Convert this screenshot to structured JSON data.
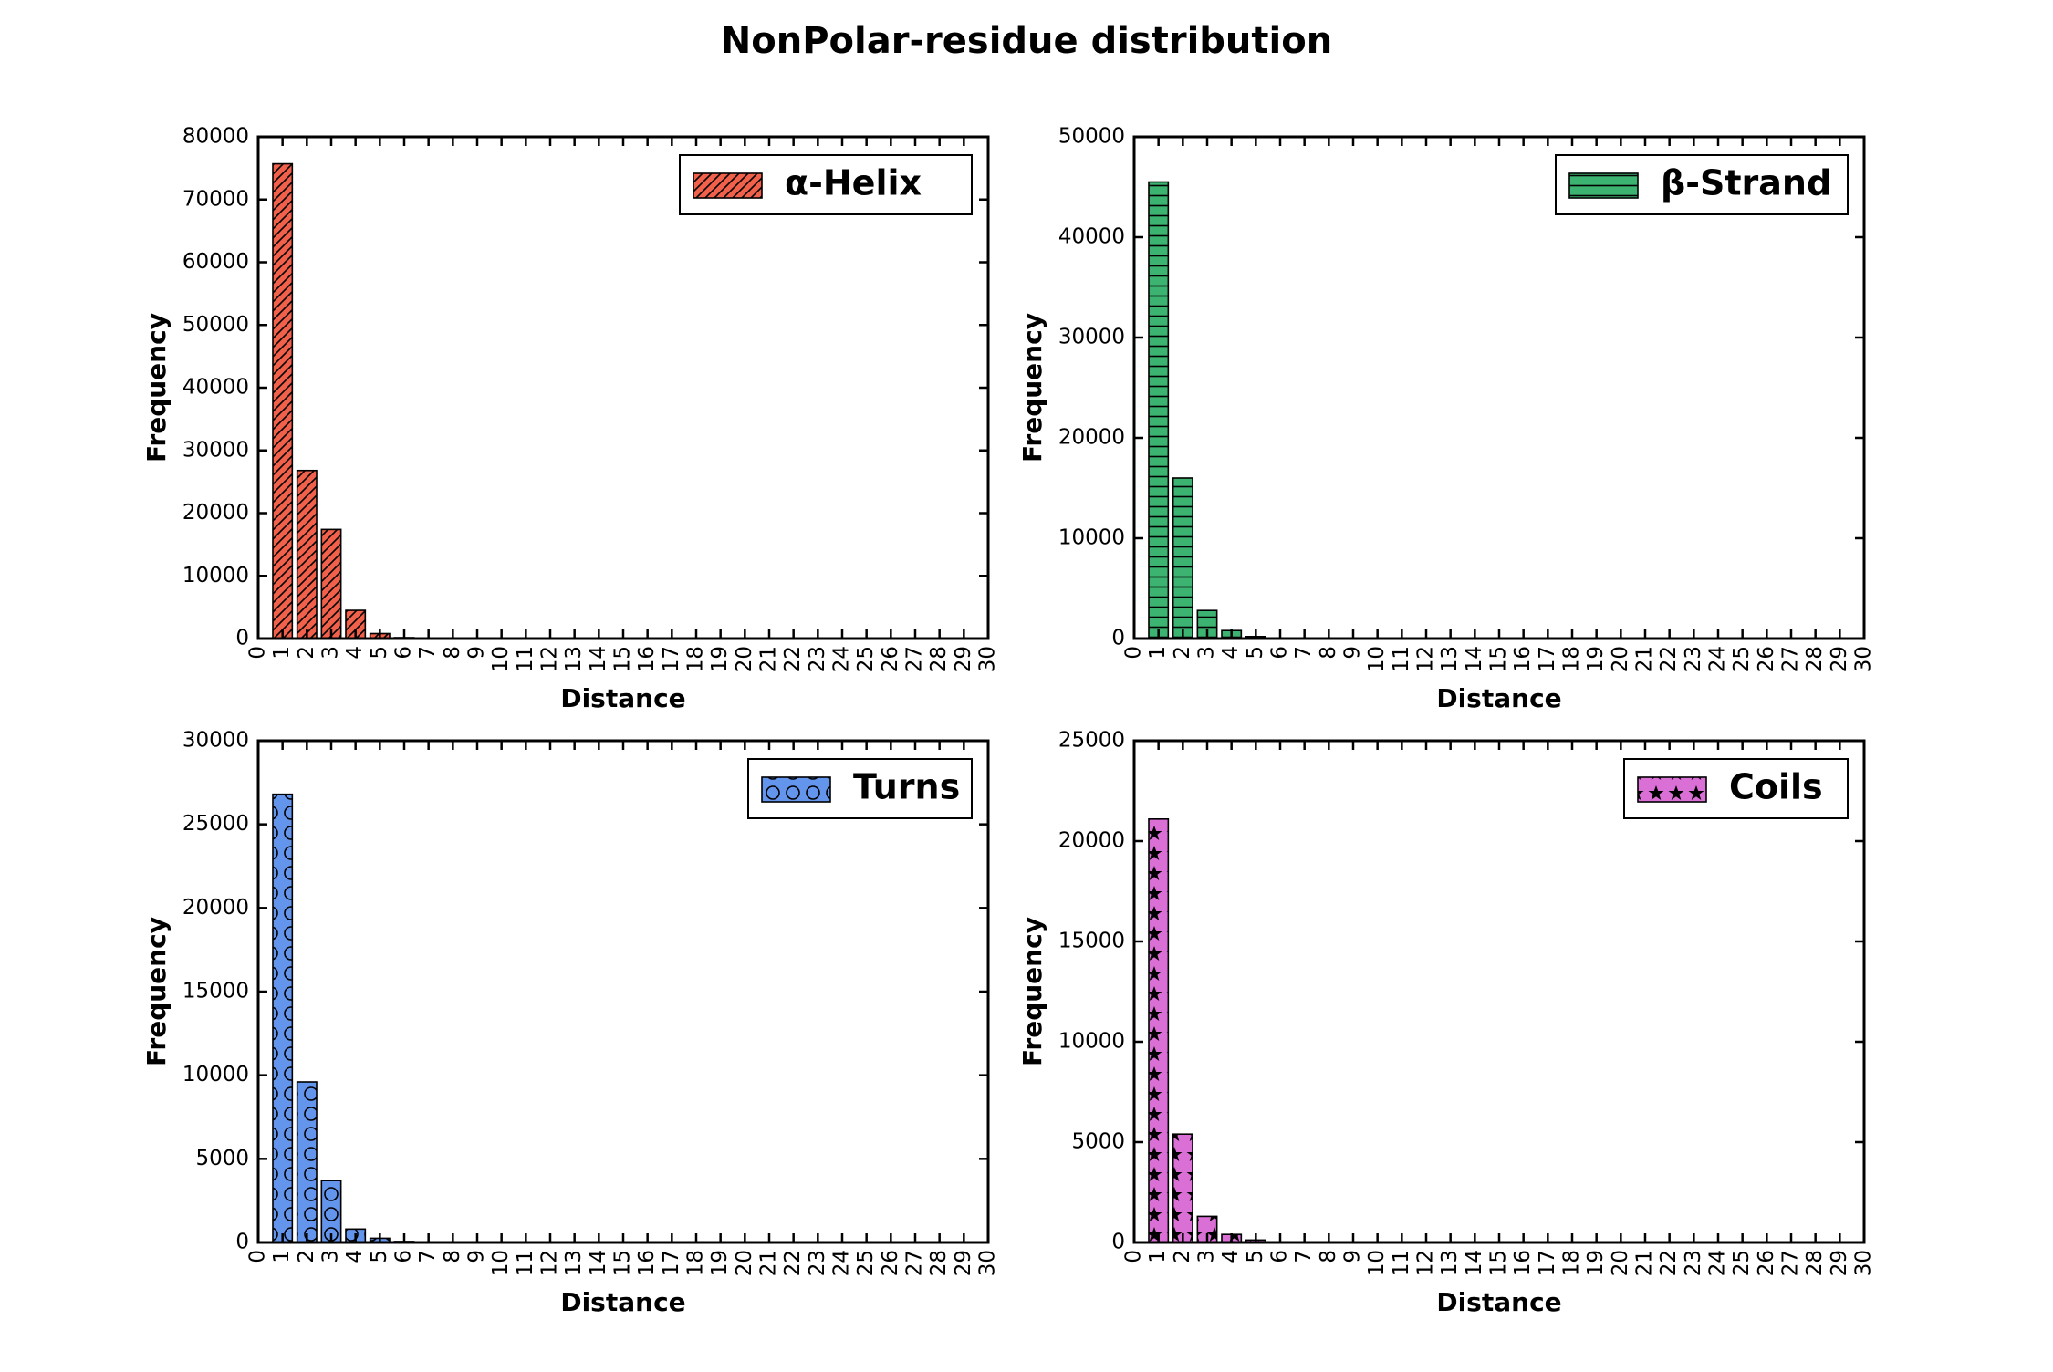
{
  "title": "NonPolar-residue distribution",
  "chart_data": [
    {
      "type": "bar",
      "legend": "α-Helix",
      "legend_placement": "top-right",
      "color": "#f0604a",
      "hatch": "diagonal",
      "xlabel": "Distance",
      "ylabel": "Frequency",
      "xlim": [
        0,
        30
      ],
      "ylim": [
        0,
        80000
      ],
      "yticks": [
        0,
        10000,
        20000,
        30000,
        40000,
        50000,
        60000,
        70000,
        80000
      ],
      "xticks": [
        0,
        1,
        2,
        3,
        4,
        5,
        6,
        7,
        8,
        9,
        10,
        11,
        12,
        13,
        14,
        15,
        16,
        17,
        18,
        19,
        20,
        21,
        22,
        23,
        24,
        25,
        26,
        27,
        28,
        29,
        30
      ],
      "x": [
        1,
        2,
        3,
        4,
        5,
        6,
        7
      ],
      "values": [
        75700,
        26800,
        17400,
        4500,
        800,
        150,
        30
      ]
    },
    {
      "type": "bar",
      "legend": "β-Strand",
      "legend_placement": "top-right",
      "color": "#3cb371",
      "hatch": "horizontal",
      "xlabel": "Distance",
      "ylabel": "Frequency",
      "xlim": [
        0,
        30
      ],
      "ylim": [
        0,
        50000
      ],
      "yticks": [
        0,
        10000,
        20000,
        30000,
        40000,
        50000
      ],
      "xticks": [
        0,
        1,
        2,
        3,
        4,
        5,
        6,
        7,
        8,
        9,
        10,
        11,
        12,
        13,
        14,
        15,
        16,
        17,
        18,
        19,
        20,
        21,
        22,
        23,
        24,
        25,
        26,
        27,
        28,
        29,
        30
      ],
      "x": [
        1,
        2,
        3,
        4,
        5,
        6,
        7
      ],
      "values": [
        45500,
        16000,
        2800,
        800,
        200,
        50,
        10
      ]
    },
    {
      "type": "bar",
      "legend": "Turns",
      "legend_placement": "top-right",
      "color": "#6495ed",
      "hatch": "circles",
      "xlabel": "Distance",
      "ylabel": "Frequency",
      "xlim": [
        0,
        30
      ],
      "ylim": [
        0,
        30000
      ],
      "yticks": [
        0,
        5000,
        10000,
        15000,
        20000,
        25000,
        30000
      ],
      "xticks": [
        0,
        1,
        2,
        3,
        4,
        5,
        6,
        7,
        8,
        9,
        10,
        11,
        12,
        13,
        14,
        15,
        16,
        17,
        18,
        19,
        20,
        21,
        22,
        23,
        24,
        25,
        26,
        27,
        28,
        29,
        30
      ],
      "x": [
        1,
        2,
        3,
        4,
        5,
        6,
        7
      ],
      "values": [
        26800,
        9600,
        3700,
        800,
        250,
        60,
        10
      ]
    },
    {
      "type": "bar",
      "legend": "Coils",
      "legend_placement": "top-right",
      "color": "#da70d6",
      "hatch": "stars",
      "xlabel": "Distance",
      "ylabel": "Frequency",
      "xlim": [
        0,
        30
      ],
      "ylim": [
        0,
        25000
      ],
      "yticks": [
        0,
        5000,
        10000,
        15000,
        20000,
        25000
      ],
      "xticks": [
        0,
        1,
        2,
        3,
        4,
        5,
        6,
        7,
        8,
        9,
        10,
        11,
        12,
        13,
        14,
        15,
        16,
        17,
        18,
        19,
        20,
        21,
        22,
        23,
        24,
        25,
        26,
        27,
        28,
        29,
        30
      ],
      "x": [
        1,
        2,
        3,
        4,
        5,
        6,
        7
      ],
      "values": [
        21100,
        5400,
        1300,
        400,
        120,
        30,
        10
      ]
    }
  ]
}
